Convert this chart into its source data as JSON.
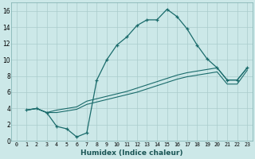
{
  "xlabel": "Humidex (Indice chaleur)",
  "bg_color": "#cce8e8",
  "grid_color": "#aacccc",
  "line_color": "#1a6b6b",
  "xlim": [
    -0.5,
    23.5
  ],
  "ylim": [
    0,
    17
  ],
  "xticks": [
    0,
    1,
    2,
    3,
    4,
    5,
    6,
    7,
    8,
    9,
    10,
    11,
    12,
    13,
    14,
    15,
    16,
    17,
    18,
    19,
    20,
    21,
    22,
    23
  ],
  "yticks": [
    0,
    2,
    4,
    6,
    8,
    10,
    12,
    14,
    16
  ],
  "line1_x": [
    1,
    2,
    3,
    4,
    5,
    6,
    7,
    8,
    9,
    10,
    11,
    12,
    13,
    14,
    15,
    16,
    17,
    18,
    19,
    20,
    21,
    22,
    23
  ],
  "line1_y": [
    3.8,
    4.0,
    3.5,
    1.8,
    1.5,
    0.5,
    1.0,
    7.5,
    10.0,
    11.8,
    12.8,
    14.2,
    14.9,
    14.9,
    16.2,
    15.3,
    13.8,
    11.8,
    10.1,
    9.0,
    7.5,
    7.5,
    9.0
  ],
  "line2_x": [
    1,
    2,
    3,
    4,
    5,
    6,
    7,
    8,
    9,
    10,
    11,
    12,
    13,
    14,
    15,
    16,
    17,
    18,
    19,
    20,
    21,
    22,
    23
  ],
  "line2_y": [
    3.8,
    4.0,
    3.5,
    3.8,
    4.0,
    4.2,
    4.9,
    5.2,
    5.5,
    5.8,
    6.1,
    6.5,
    6.9,
    7.3,
    7.7,
    8.1,
    8.4,
    8.6,
    8.8,
    9.0,
    7.5,
    7.5,
    9.0
  ],
  "line3_x": [
    1,
    2,
    3,
    4,
    5,
    6,
    7,
    8,
    9,
    10,
    11,
    12,
    13,
    14,
    15,
    16,
    17,
    18,
    19,
    20,
    21,
    22,
    23
  ],
  "line3_y": [
    3.8,
    4.0,
    3.5,
    3.5,
    3.7,
    3.9,
    4.5,
    4.8,
    5.1,
    5.4,
    5.7,
    6.0,
    6.4,
    6.8,
    7.2,
    7.6,
    7.9,
    8.1,
    8.3,
    8.5,
    7.0,
    7.0,
    8.7
  ]
}
